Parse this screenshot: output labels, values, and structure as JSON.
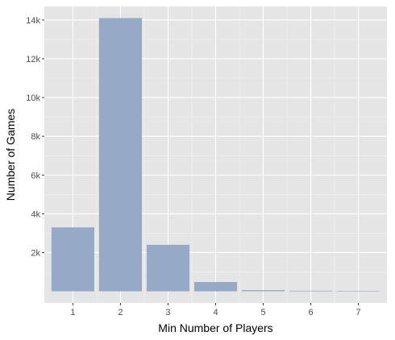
{
  "chart_data": {
    "type": "bar",
    "xlabel": "Min Number of Players",
    "ylabel": "Number of Games",
    "categories": [
      "1",
      "2",
      "3",
      "4",
      "5",
      "6",
      "7"
    ],
    "values": [
      3300,
      14100,
      2400,
      480,
      60,
      30,
      10
    ],
    "y_ticks": [
      2000,
      4000,
      6000,
      8000,
      10000,
      12000,
      14000
    ],
    "y_tick_labels": [
      "2k",
      "4k",
      "6k",
      "8k",
      "10k",
      "12k",
      "14k"
    ],
    "ylim": [
      -600,
      14700
    ],
    "grid": true,
    "legend": "none",
    "colors": {
      "bar": "#96aac8",
      "panel": "#e5e5e5",
      "grid_major": "#ffffff",
      "grid_minor": "#f2f2f2",
      "tick": "#333333"
    }
  }
}
